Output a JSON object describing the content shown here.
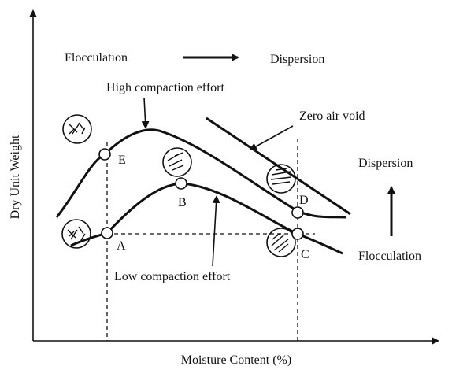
{
  "axes": {
    "y_label": "Dry Unit Weight",
    "x_label": "Moisture Content (%)"
  },
  "top": {
    "left": "Flocculation",
    "right": "Dispersion"
  },
  "curves": {
    "high": "High compaction effort",
    "low": "Low compaction effort",
    "zav": "Zero air void"
  },
  "side": {
    "top": "Dispersion",
    "bottom": "Flocculation"
  },
  "points": {
    "a": "A",
    "b": "B",
    "c": "C",
    "d": "D",
    "e": "E"
  }
}
